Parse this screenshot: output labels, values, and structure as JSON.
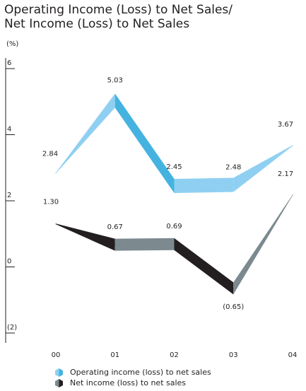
{
  "title_line1": "Operating Income (Loss) to Net Sales/",
  "title_line2": "Net Income (Loss) to Net Sales",
  "unit": "(%)",
  "legend": [
    {
      "label": "Operating income (loss) to net sales",
      "color": "#45b3e0"
    },
    {
      "label": "Net income (loss) to net sales",
      "color": "#231f20"
    }
  ],
  "colors": {
    "op_dark": "#45b3e0",
    "op_light": "#8fd0f2",
    "net_dark": "#231f20",
    "net_light": "#7c8a90"
  },
  "chart_data": {
    "type": "line",
    "title": "Operating Income (Loss) to Net Sales/ Net Income (Loss) to Net Sales",
    "ylabel": "(%)",
    "ylim": [
      -2,
      6
    ],
    "yticks": [
      6,
      4,
      2,
      0,
      -2
    ],
    "ytick_labels": [
      "6",
      "4",
      "2",
      "0",
      "(2)"
    ],
    "categories": [
      "00",
      "01",
      "02",
      "03",
      "04"
    ],
    "series": [
      {
        "name": "Operating income (loss) to net sales",
        "values": [
          2.84,
          5.03,
          2.45,
          2.48,
          3.67
        ],
        "labels": [
          "2.84",
          "5.03",
          "2.45",
          "2.48",
          "3.67"
        ]
      },
      {
        "name": "Net income (loss) to net sales",
        "values": [
          1.3,
          0.67,
          0.69,
          -0.65,
          2.17
        ],
        "labels": [
          "1.30",
          "0.67",
          "0.69",
          "(0.65)",
          "2.17"
        ]
      }
    ]
  }
}
